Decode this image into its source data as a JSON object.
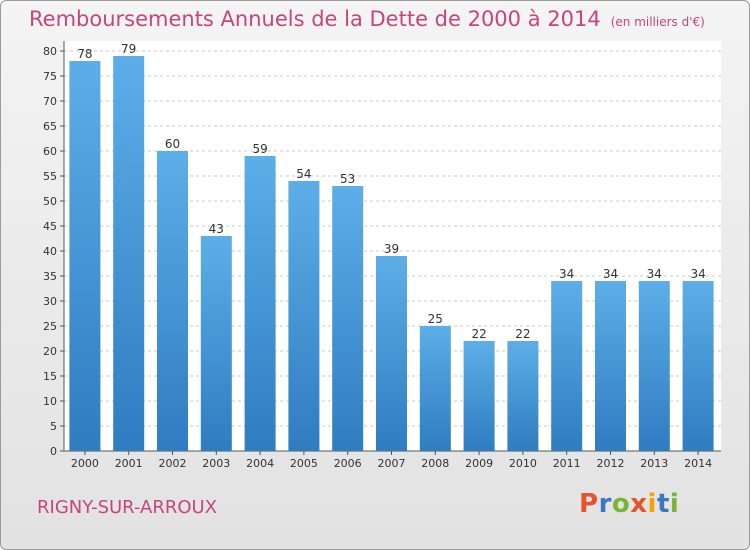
{
  "header": {
    "title": "Remboursements Annuels de la Dette de 2000 à 2014",
    "unit": "(en milliers d'€)"
  },
  "footer": {
    "town": "RIGNY-SUR-ARROUX",
    "logo_text": "Proxiti"
  },
  "colors": {
    "title": "#c8457a",
    "bar_top": "#5daee8",
    "bar_bottom": "#2f7cc0",
    "logo_letters": [
      "#e8532b",
      "#3a78c2",
      "#78b536",
      "#e8532b",
      "#f0a500",
      "#3a78c2",
      "#78b536"
    ]
  },
  "chart_data": {
    "type": "bar",
    "title": "Remboursements Annuels de la Dette de 2000 à 2014",
    "categories": [
      "2000",
      "2001",
      "2002",
      "2003",
      "2004",
      "2005",
      "2006",
      "2007",
      "2008",
      "2009",
      "2010",
      "2011",
      "2012",
      "2013",
      "2014"
    ],
    "values": [
      78,
      79,
      60,
      43,
      59,
      54,
      53,
      39,
      25,
      22,
      22,
      34,
      34,
      34,
      34
    ],
    "ylim": [
      0,
      80
    ],
    "yticks": [
      0,
      5,
      10,
      15,
      20,
      25,
      30,
      35,
      40,
      45,
      50,
      55,
      60,
      65,
      70,
      75,
      80
    ],
    "grid": "horizontal-dashed",
    "data_labels": true,
    "legend": "none"
  }
}
